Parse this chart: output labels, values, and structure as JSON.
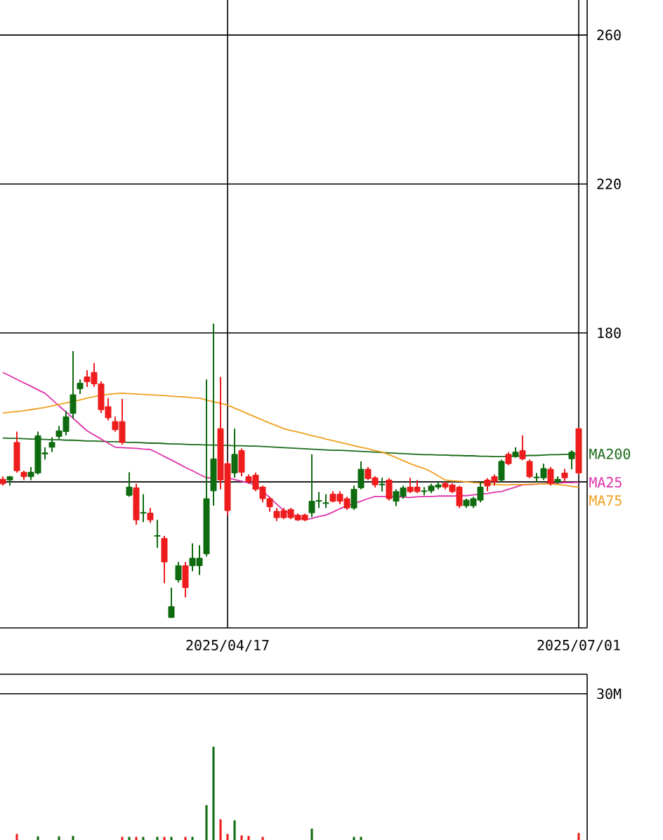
{
  "chart_data": [
    {
      "type": "candlestick",
      "categories": [
        null,
        null,
        null,
        null,
        null,
        null,
        null,
        null,
        null,
        null,
        null,
        null,
        null,
        null,
        null,
        null,
        null,
        null,
        null,
        null,
        null,
        null,
        null,
        null,
        null,
        null,
        null,
        null,
        null,
        null,
        null,
        null,
        "2025/04/17",
        null,
        null,
        null,
        null,
        null,
        null,
        null,
        null,
        null,
        null,
        null,
        null,
        null,
        null,
        null,
        null,
        null,
        null,
        null,
        null,
        null,
        null,
        null,
        null,
        null,
        null,
        null,
        null,
        null,
        null,
        null,
        null,
        null,
        null,
        null,
        null,
        null,
        null,
        null,
        null,
        null,
        null,
        null,
        null,
        null,
        null,
        null,
        null,
        null,
        "2025/07/01"
      ],
      "ohlc": [
        [
          140.7,
          141.5,
          139,
          139.5
        ],
        [
          140.5,
          141.6,
          139,
          141.4
        ],
        [
          150.6,
          153.5,
          142.5,
          143.0
        ],
        [
          142.6,
          143,
          140.5,
          141.4
        ],
        [
          141.4,
          144,
          140.5,
          142.6
        ],
        [
          142.4,
          153.5,
          142,
          152.4
        ],
        [
          147.5,
          149.3,
          146,
          147.8
        ],
        [
          149.3,
          152,
          148,
          150.6
        ],
        [
          152.2,
          155,
          151.5,
          153.7
        ],
        [
          153.5,
          159,
          152.5,
          157.5
        ],
        [
          158.4,
          175.1,
          157,
          163.4
        ],
        [
          165.0,
          167.5,
          163.6,
          166.5
        ],
        [
          168.2,
          170,
          165.5,
          166.9
        ],
        [
          169.4,
          171.9,
          165.5,
          166.3
        ],
        [
          166.3,
          167,
          158.5,
          159.4
        ],
        [
          160.2,
          162.5,
          156.5,
          157.2
        ],
        [
          156.2,
          157.5,
          153.5,
          154.0
        ],
        [
          156.2,
          162.3,
          150,
          150.6
        ],
        [
          136.4,
          142.6,
          136,
          138.6
        ],
        [
          138.4,
          139.5,
          128.5,
          129.8
        ],
        [
          131.6,
          136.7,
          129.2,
          131.8
        ],
        [
          131.6,
          133,
          129,
          129.8
        ],
        [
          125.4,
          129.8,
          122.3,
          125.6
        ],
        [
          124.8,
          125.5,
          112.8,
          118.5
        ],
        [
          103.6,
          111.6,
          103.5,
          106.5
        ],
        [
          113.7,
          118.5,
          113,
          117.5
        ],
        [
          117.5,
          118.5,
          109,
          111.6
        ],
        [
          117.5,
          123.5,
          116,
          119.5
        ],
        [
          117.5,
          123,
          115,
          119.5
        ],
        [
          120.7,
          167.5,
          120,
          135.5
        ],
        [
          137.6,
          182.5,
          133.6,
          146.2
        ],
        [
          154.3,
          168.2,
          138,
          140.5
        ],
        [
          144.9,
          145.5,
          131,
          132.3
        ],
        [
          142.4,
          154.3,
          141.1,
          147.4
        ],
        [
          148.4,
          149,
          141.5,
          142.6
        ],
        [
          141.4,
          142,
          139.5,
          140.1
        ],
        [
          141.8,
          142.5,
          137.5,
          138.0
        ],
        [
          138.6,
          139,
          134.5,
          135.5
        ],
        [
          135.5,
          136,
          132,
          133.3
        ],
        [
          132.1,
          133,
          129.5,
          130.4
        ],
        [
          132.3,
          133,
          130,
          130.4
        ],
        [
          132.6,
          133,
          130,
          130.4
        ],
        [
          131.1,
          131.5,
          129.5,
          129.8
        ],
        [
          131.1,
          131.5,
          129.5,
          129.8
        ],
        [
          131.7,
          147.4,
          130.5,
          134.8
        ],
        [
          134.8,
          137.3,
          133,
          135.0
        ],
        [
          134.2,
          136.7,
          133,
          134.4
        ],
        [
          136.7,
          137.5,
          134.5,
          134.8
        ],
        [
          136.7,
          137.5,
          134,
          134.8
        ],
        [
          135.5,
          136,
          132.5,
          133.0
        ],
        [
          133.0,
          139,
          132.5,
          138.0
        ],
        [
          138.4,
          145.5,
          138,
          143.4
        ],
        [
          143.4,
          144,
          140.5,
          140.9
        ],
        [
          141.1,
          141.5,
          138.5,
          139.2
        ],
        [
          139.2,
          141.1,
          137.4,
          139.4
        ],
        [
          140.5,
          141,
          135,
          135.5
        ],
        [
          134.8,
          138,
          133.5,
          137.4
        ],
        [
          136.1,
          139,
          135.5,
          138.4
        ],
        [
          138.6,
          141.1,
          137,
          137.4
        ],
        [
          138.6,
          140.5,
          137,
          137.4
        ],
        [
          137.4,
          138.6,
          136.4,
          137.6
        ],
        [
          137.6,
          139.5,
          137,
          138.9
        ],
        [
          138.6,
          140,
          138,
          139.2
        ],
        [
          139.6,
          140,
          138,
          138.6
        ],
        [
          139.2,
          139.6,
          137,
          137.4
        ],
        [
          138.6,
          139,
          133,
          133.6
        ],
        [
          133.6,
          135.5,
          133,
          135.1
        ],
        [
          133.6,
          136,
          133,
          135.5
        ],
        [
          135.1,
          140,
          134.5,
          138.6
        ],
        [
          140.5,
          141,
          137.5,
          138.9
        ],
        [
          141.4,
          142,
          139,
          140.1
        ],
        [
          140.5,
          146,
          140,
          145.5
        ],
        [
          147.4,
          148,
          144.5,
          144.9
        ],
        [
          146.8,
          149.3,
          146.5,
          148.0
        ],
        [
          148.4,
          152.5,
          145.8,
          146.2
        ],
        [
          145.5,
          146,
          141,
          141.4
        ],
        [
          141.1,
          142.4,
          139.9,
          141.3
        ],
        [
          141.1,
          144.9,
          140.5,
          143.6
        ],
        [
          143.4,
          144,
          139,
          139.6
        ],
        [
          139.9,
          141.5,
          139.5,
          140.7
        ],
        [
          142.4,
          143.5,
          140,
          141.1
        ],
        [
          146.2,
          148.5,
          143.4,
          148.0
        ],
        [
          154.3,
          154.5,
          142,
          142.4
        ]
      ],
      "colors": [
        "#ee1c1c",
        "#0f6b0f",
        "#ee1c1c",
        "#ee1c1c",
        "#0f6b0f",
        "#0f6b0f",
        "#0f6b0f",
        "#0f6b0f",
        "#0f6b0f",
        "#0f6b0f",
        "#0f6b0f",
        "#0f6b0f",
        "#ee1c1c",
        "#ee1c1c",
        "#ee1c1c",
        "#ee1c1c",
        "#ee1c1c",
        "#ee1c1c",
        "#0f6b0f",
        "#ee1c1c",
        "#0f6b0f",
        "#ee1c1c",
        "#0f6b0f",
        "#ee1c1c",
        "#0f6b0f",
        "#0f6b0f",
        "#ee1c1c",
        "#0f6b0f",
        "#0f6b0f",
        "#0f6b0f",
        "#0f6b0f",
        "#ee1c1c",
        "#ee1c1c",
        "#0f6b0f",
        "#ee1c1c",
        "#ee1c1c",
        "#ee1c1c",
        "#ee1c1c",
        "#ee1c1c",
        "#ee1c1c",
        "#ee1c1c",
        "#ee1c1c",
        "#ee1c1c",
        "#ee1c1c",
        "#0f6b0f",
        "#0f6b0f",
        "#0f6b0f",
        "#ee1c1c",
        "#ee1c1c",
        "#ee1c1c",
        "#0f6b0f",
        "#0f6b0f",
        "#ee1c1c",
        "#ee1c1c",
        "#0f6b0f",
        "#ee1c1c",
        "#0f6b0f",
        "#0f6b0f",
        "#ee1c1c",
        "#ee1c1c",
        "#0f6b0f",
        "#0f6b0f",
        "#0f6b0f",
        "#ee1c1c",
        "#ee1c1c",
        "#ee1c1c",
        "#0f6b0f",
        "#0f6b0f",
        "#0f6b0f",
        "#ee1c1c",
        "#ee1c1c",
        "#0f6b0f",
        "#ee1c1c",
        "#0f6b0f",
        "#ee1c1c",
        "#ee1c1c",
        "#0f6b0f",
        "#0f6b0f",
        "#ee1c1c",
        "#0f6b0f",
        "#ee1c1c",
        "#0f6b0f",
        "#ee1c1c"
      ],
      "series": [
        {
          "type": "line",
          "name": "MA200",
          "color": "#1a6b1a",
          "values": [
            151.8,
            151.7,
            151.7,
            151.6,
            151.5,
            151.5,
            151.4,
            151.3,
            151.3,
            151.2,
            151.2,
            151.1,
            151.0,
            151.0,
            150.9,
            150.8,
            150.8,
            150.7,
            150.6,
            150.6,
            150.5,
            150.4,
            150.4,
            150.3,
            150.2,
            150.2,
            150.1,
            150.0,
            150.0,
            149.9,
            149.9,
            149.8,
            149.8,
            149.7,
            149.7,
            149.6,
            149.6,
            149.5,
            149.4,
            149.3,
            149.2,
            149.1,
            149.0,
            148.9,
            148.8,
            148.7,
            148.6,
            148.5,
            148.5,
            148.4,
            148.3,
            148.2,
            148.1,
            148.0,
            147.9,
            147.8,
            147.7,
            147.6,
            147.5,
            147.4,
            147.3,
            147.3,
            147.2,
            147.2,
            147.1,
            147.1,
            147.0,
            147.0,
            146.9,
            146.9,
            146.8,
            146.8,
            146.9,
            146.9,
            147.0,
            147.1,
            147.1,
            147.2,
            147.3,
            147.3,
            147.4,
            147.4,
            147.5
          ]
        },
        {
          "type": "line",
          "name": "MA25",
          "color": "#dd33aa",
          "values": [
            169.4,
            168.5,
            167.5,
            166.6,
            165.7,
            164.7,
            163.8,
            162.1,
            160.4,
            158.8,
            157.1,
            155.4,
            153.7,
            152.6,
            151.5,
            150.4,
            149.3,
            149.2,
            149.1,
            149.0,
            148.8,
            148.7,
            147.8,
            146.8,
            145.9,
            144.9,
            143.9,
            143.0,
            142.0,
            141.1,
            141.1,
            null,
            141.1,
            140.6,
            140.2,
            139.7,
            139.2,
            137.5,
            135.8,
            134.0,
            132.3,
            131.5,
            130.6,
            129.8,
            130.2,
            130.7,
            131.1,
            131.9,
            132.8,
            133.6,
            134.2,
            134.8,
            135.5,
            136.1,
            136.1,
            136.1,
            136.1,
            135.9,
            135.8,
            136.0,
            136.1,
            136.1,
            136.2,
            136.2,
            136.2,
            136.3,
            136.3,
            136.5,
            136.7,
            136.9,
            137.2,
            137.4,
            138.0,
            138.6,
            139.2,
            139.3,
            139.4,
            139.5,
            139.6,
            139.7,
            139.8,
            139.8,
            139.9
          ]
        },
        {
          "type": "line",
          "name": "MA75",
          "color": "#f0a020",
          "values": [
            158.5,
            158.7,
            158.9,
            159.1,
            159.4,
            159.7,
            160.0,
            160.4,
            160.8,
            161.2,
            161.6,
            162.0,
            162.5,
            162.9,
            163.2,
            163.5,
            163.7,
            163.8,
            163.7,
            163.6,
            163.5,
            163.4,
            163.3,
            163.2,
            163.0,
            162.9,
            162.8,
            162.6,
            162.5,
            162.0,
            161.5,
            161.1,
            160.6,
            159.8,
            159.0,
            158.2,
            157.4,
            156.6,
            155.8,
            155.1,
            154.3,
            153.8,
            153.4,
            152.9,
            152.4,
            152.0,
            151.5,
            151.1,
            150.6,
            150.2,
            149.7,
            149.3,
            148.9,
            148.4,
            148.0,
            147.3,
            146.5,
            145.7,
            144.9,
            144.2,
            143.6,
            142.7,
            141.6,
            140.5,
            140.3,
            140.2,
            140.0,
            139.8,
            139.7,
            139.5,
            139.4,
            139.2,
            139.2,
            139.3,
            139.3,
            139.4,
            139.4,
            139.5,
            139.5,
            139.3,
            139.1,
            138.8,
            138.6
          ]
        }
      ],
      "ylim": [
        100.8,
        269.4
      ],
      "yticks": [
        {
          "value": 140,
          "label": null
        },
        180,
        220,
        260
      ],
      "grid": true
    },
    {
      "type": "bar",
      "categories": [
        null,
        null,
        null,
        null,
        null,
        null,
        null,
        null,
        null,
        null,
        null,
        null,
        null,
        null,
        null,
        null,
        null,
        null,
        null,
        null,
        null,
        null,
        null,
        null,
        null,
        null,
        null,
        null,
        null,
        null,
        null,
        null,
        "2025/04/17",
        null,
        null,
        null,
        null,
        null,
        null,
        null,
        null,
        null,
        null,
        null,
        null,
        null,
        null,
        null,
        null,
        null,
        null,
        null,
        null,
        null,
        null,
        null,
        null,
        null,
        null,
        null,
        null,
        null,
        null,
        null,
        null,
        null,
        null,
        null,
        null,
        null,
        null,
        null,
        null,
        null,
        null,
        null,
        null,
        null,
        null,
        null,
        null,
        null,
        "2025/07/01"
      ],
      "values": [
        null,
        null,
        1.2,
        null,
        null,
        0.7,
        null,
        null,
        0.7,
        null,
        0.8,
        null,
        null,
        null,
        null,
        null,
        null,
        0.6,
        0.6,
        0.6,
        0.6,
        null,
        0.6,
        0.6,
        0.6,
        null,
        0.6,
        0.6,
        null,
        7.1,
        19.1,
        4.2,
        1.2,
        4.0,
        0.9,
        0.8,
        null,
        0.6,
        null,
        null,
        null,
        null,
        null,
        null,
        2.3,
        null,
        null,
        null,
        null,
        null,
        0.6,
        0.6,
        null,
        null,
        null,
        null,
        null,
        null,
        null,
        null,
        null,
        null,
        null,
        null,
        null,
        null,
        null,
        null,
        null,
        null,
        null,
        null,
        null,
        null,
        null,
        null,
        null,
        null,
        null,
        null,
        null,
        null,
        1.4
      ],
      "colors": [
        "#ee1c1c",
        "#0f6b0f",
        "#ee1c1c",
        "#ee1c1c",
        "#0f6b0f",
        "#0f6b0f",
        "#0f6b0f",
        "#0f6b0f",
        "#0f6b0f",
        "#0f6b0f",
        "#0f6b0f",
        "#0f6b0f",
        "#ee1c1c",
        "#ee1c1c",
        "#ee1c1c",
        "#ee1c1c",
        "#ee1c1c",
        "#ee1c1c",
        "#0f6b0f",
        "#ee1c1c",
        "#0f6b0f",
        "#ee1c1c",
        "#0f6b0f",
        "#ee1c1c",
        "#0f6b0f",
        "#0f6b0f",
        "#ee1c1c",
        "#0f6b0f",
        "#0f6b0f",
        "#0f6b0f",
        "#0f6b0f",
        "#ee1c1c",
        "#ee1c1c",
        "#0f6b0f",
        "#ee1c1c",
        "#ee1c1c",
        "#ee1c1c",
        "#ee1c1c",
        "#ee1c1c",
        "#ee1c1c",
        "#ee1c1c",
        "#ee1c1c",
        "#ee1c1c",
        "#ee1c1c",
        "#0f6b0f",
        "#0f6b0f",
        "#0f6b0f",
        "#ee1c1c",
        "#ee1c1c",
        "#ee1c1c",
        "#0f6b0f",
        "#0f6b0f",
        "#ee1c1c",
        "#ee1c1c",
        "#0f6b0f",
        "#ee1c1c",
        "#0f6b0f",
        "#0f6b0f",
        "#ee1c1c",
        "#ee1c1c",
        "#0f6b0f",
        "#0f6b0f",
        "#0f6b0f",
        "#ee1c1c",
        "#ee1c1c",
        "#ee1c1c",
        "#0f6b0f",
        "#0f6b0f",
        "#0f6b0f",
        "#ee1c1c",
        "#ee1c1c",
        "#0f6b0f",
        "#ee1c1c",
        "#0f6b0f",
        "#ee1c1c",
        "#ee1c1c",
        "#0f6b0f",
        "#0f6b0f",
        "#ee1c1c",
        "#0f6b0f",
        "#ee1c1c",
        "#0f6b0f",
        "#ee1c1c"
      ],
      "ylim": [
        0,
        34
      ],
      "yticks": [
        {
          "value": 30,
          "label": "30M"
        }
      ],
      "grid": "y",
      "tick_labels": "y"
    }
  ]
}
